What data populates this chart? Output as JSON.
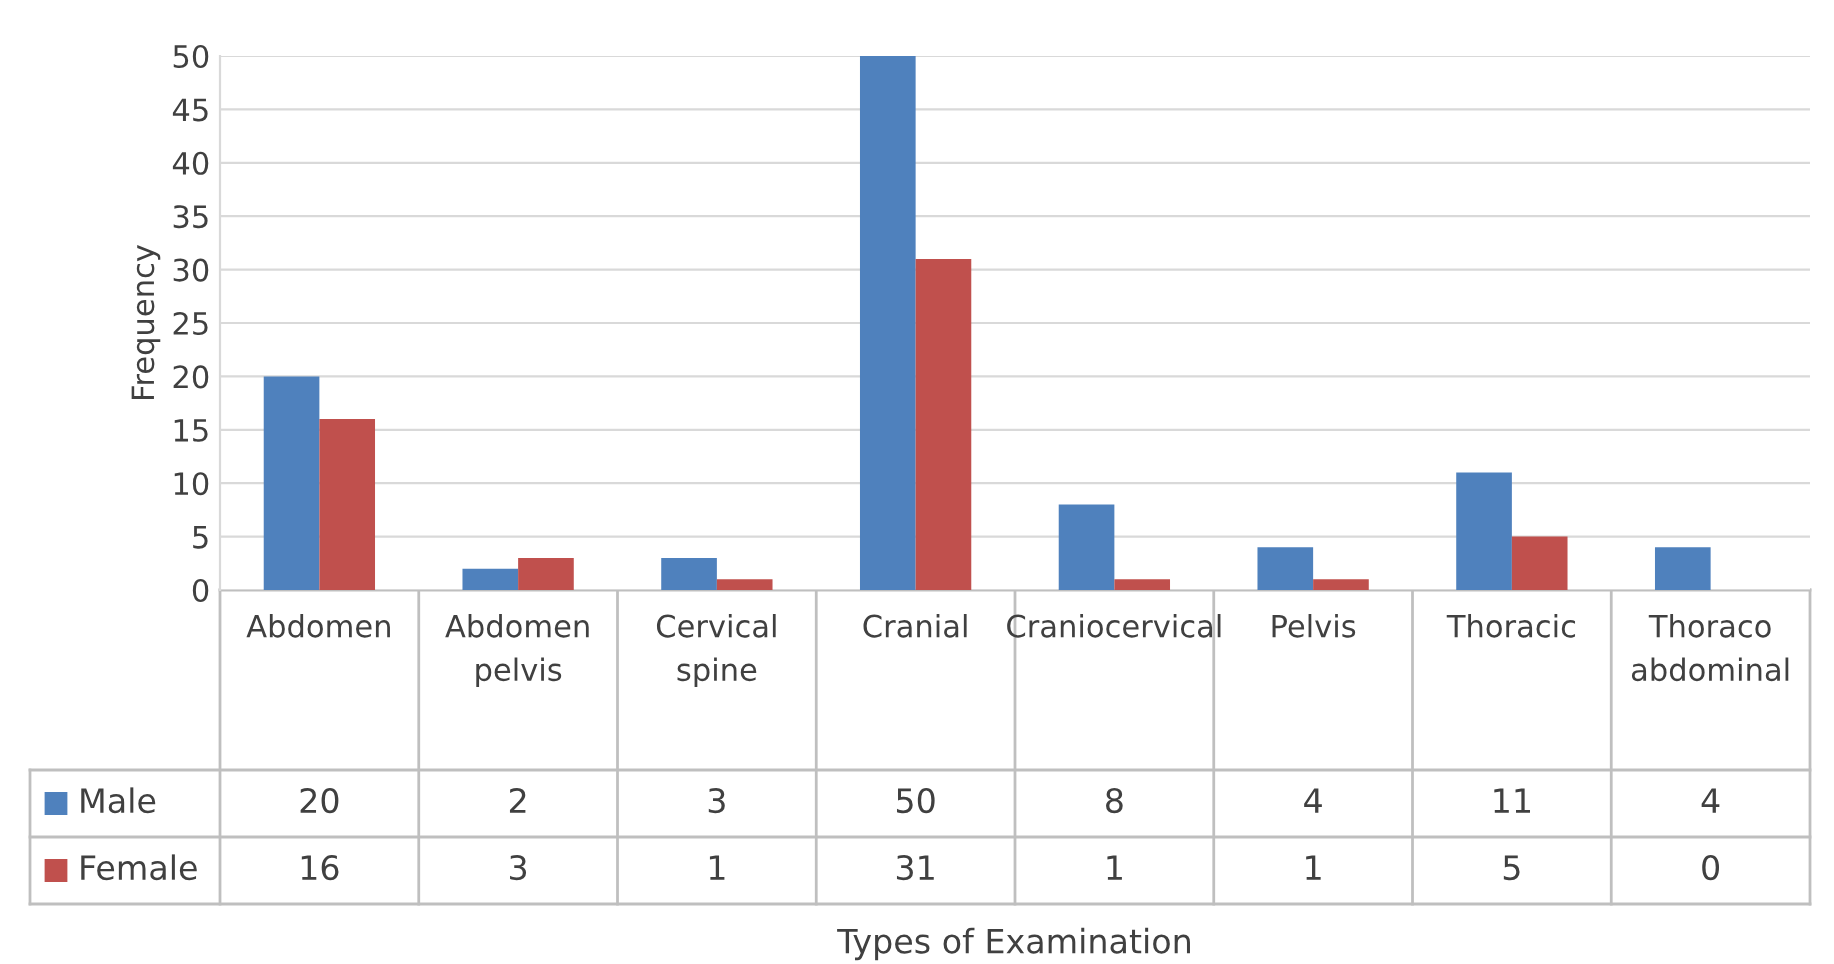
{
  "chart_data": {
    "type": "bar",
    "annotations": [
      "Types of Examination"
    ],
    "ylabel": "Frequency",
    "categories": [
      "Abdomen",
      "Abdomen pelvis",
      "Cervical spine",
      "Cranial",
      "Craniocervical",
      "Pelvis",
      "Thoracic",
      "Thoraco abdominal"
    ],
    "series": [
      {
        "name": "Male",
        "color": "#4f81bd",
        "values": [
          20,
          2,
          3,
          50,
          8,
          4,
          11,
          4
        ]
      },
      {
        "name": "Female",
        "color": "#c0504d",
        "values": [
          16,
          3,
          1,
          31,
          1,
          1,
          5,
          0
        ]
      }
    ],
    "ylim": [
      0,
      50
    ],
    "yticks": [
      0,
      5,
      10,
      15,
      20,
      25,
      30,
      35,
      40,
      45,
      50
    ],
    "grid": "y",
    "data_labels": true,
    "legend": "bottom"
  }
}
